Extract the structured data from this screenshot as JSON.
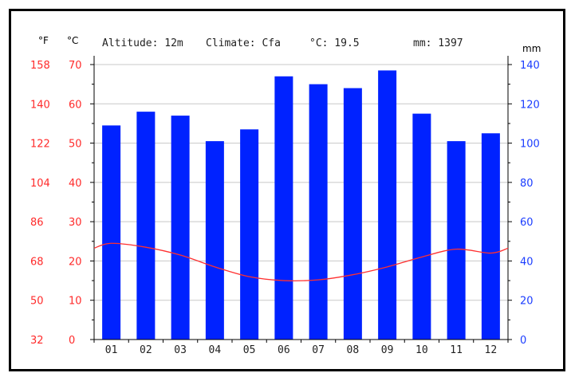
{
  "header": {
    "altitude": "Altitude: 12m",
    "climate": "Climate: Cfa",
    "celsius": "°C: 19.5",
    "mm": "mm: 1397"
  },
  "chart_data": {
    "type": "bar",
    "categories": [
      "01",
      "02",
      "03",
      "04",
      "05",
      "06",
      "07",
      "08",
      "09",
      "10",
      "11",
      "12"
    ],
    "series": [
      {
        "type": "bar",
        "axis": "right",
        "values": [
          109,
          116,
          114,
          101,
          107,
          134,
          130,
          128,
          137,
          115,
          101,
          105
        ],
        "color": "#0022ff"
      },
      {
        "type": "line",
        "axis": "left",
        "values": [
          24.5,
          23.5,
          21.5,
          18.5,
          16,
          15,
          15.2,
          16.5,
          18.5,
          21,
          23,
          22
        ],
        "color": "#ff3030"
      }
    ],
    "axes": {
      "left_f": {
        "unit": "°F",
        "ticks": [
          "32",
          "50",
          "68",
          "86",
          "104",
          "122",
          "140",
          "158"
        ],
        "color": "#ff2a2a"
      },
      "left_c": {
        "unit": "°C",
        "ticks": [
          "0",
          "10",
          "20",
          "30",
          "40",
          "50",
          "60",
          "70"
        ],
        "range": [
          0,
          70
        ],
        "color": "#ff2a2a"
      },
      "right": {
        "unit": "mm",
        "ticks": [
          "0",
          "20",
          "40",
          "60",
          "80",
          "100",
          "120",
          "140"
        ],
        "range": [
          0,
          140
        ],
        "color": "#1a3cff"
      }
    },
    "grid": true
  }
}
